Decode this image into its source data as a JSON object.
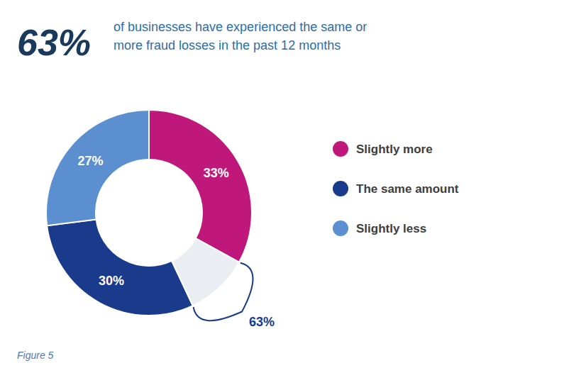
{
  "chart_data": {
    "type": "pie",
    "title": "63%",
    "subtitle": "of businesses have experienced the same or\nmore fraud losses in the past 12 months",
    "categories": [
      "Slightly more",
      null,
      "The same amount",
      "Slightly less"
    ],
    "values": [
      33,
      10,
      30,
      27
    ],
    "value_labels": [
      "33%",
      null,
      "30%",
      "27%"
    ],
    "colors": [
      "#c0187a",
      "#eaedf2",
      "#1a3a8c",
      "#5b8fcf"
    ],
    "data_labels": true,
    "legend": "right",
    "annotations": [
      "63%",
      "Figure 5"
    ]
  }
}
